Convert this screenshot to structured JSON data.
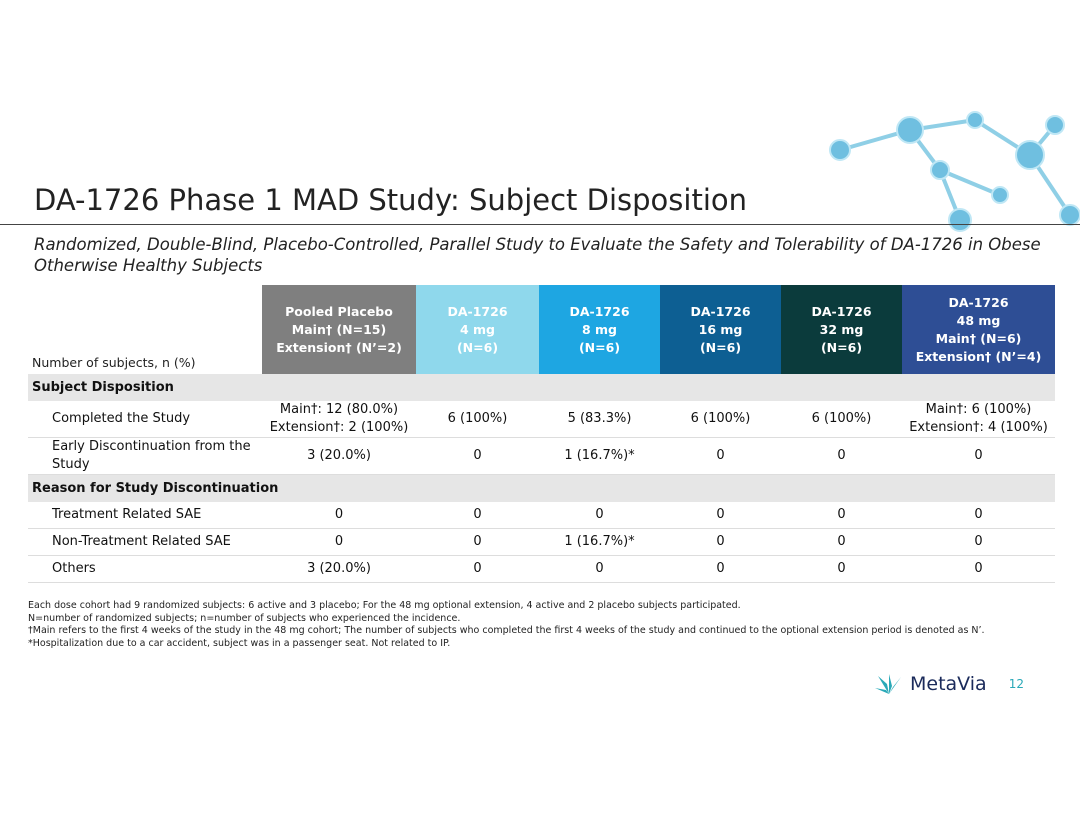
{
  "header": {
    "title": "DA-1726 Phase 1 MAD Study: Subject Disposition",
    "subtitle": "Randomized, Double-Blind, Placebo-Controlled, Parallel Study to Evaluate the Safety and Tolerability of DA-1726 in Obese Otherwise Healthy Subjects"
  },
  "table": {
    "corner": "Number of subjects, n (%)",
    "columns": [
      [
        "Pooled Placebo",
        "Main† (N=15)",
        "Extension† (N’=2)"
      ],
      [
        "DA-1726",
        "4 mg",
        "(N=6)"
      ],
      [
        "DA-1726",
        "8 mg",
        "(N=6)"
      ],
      [
        "DA-1726",
        "16 mg",
        "(N=6)"
      ],
      [
        "DA-1726",
        "32 mg",
        "(N=6)"
      ],
      [
        "DA-1726",
        "48 mg",
        "Main† (N=6)",
        "Extension† (N’=4)"
      ]
    ],
    "sections": [
      {
        "title": "Subject Disposition",
        "rows": [
          {
            "label": "Completed the Study",
            "cells": [
              [
                "Main†: 12 (80.0%)",
                "Extension†: 2 (100%)"
              ],
              "6 (100%)",
              "5 (83.3%)",
              "6 (100%)",
              "6 (100%)",
              [
                "Main†: 6 (100%)",
                "Extension†: 4 (100%)"
              ]
            ]
          },
          {
            "label": "Early Discontinuation from the Study",
            "cells": [
              "3 (20.0%)",
              "0",
              "1 (16.7%)*",
              "0",
              "0",
              "0"
            ]
          }
        ]
      },
      {
        "title": "Reason for Study Discontinuation",
        "rows": [
          {
            "label": "Treatment Related SAE",
            "cells": [
              "0",
              "0",
              "0",
              "0",
              "0",
              "0"
            ]
          },
          {
            "label": "Non-Treatment Related SAE",
            "cells": [
              "0",
              "0",
              "1 (16.7%)*",
              "0",
              "0",
              "0"
            ]
          },
          {
            "label": "Others",
            "cells": [
              "3 (20.0%)",
              "0",
              "0",
              "0",
              "0",
              "0"
            ]
          }
        ]
      }
    ]
  },
  "footnotes": [
    "Each dose cohort had 9 randomized subjects: 6 active and 3 placebo; For the 48 mg optional extension, 4 active and 2 placebo subjects participated.",
    "N=number of randomized subjects; n=number of subjects who experienced the incidence.",
    "†Main refers to the first 4 weeks of the study in the 48 mg cohort; The number of subjects who completed the first 4 weeks of the study and continued to the optional extension period is denoted as N’.",
    "*Hospitalization due to a car accident, subject was in a passenger seat. Not related to IP."
  ],
  "footer": {
    "brand": "MetaVia",
    "page": "12"
  }
}
